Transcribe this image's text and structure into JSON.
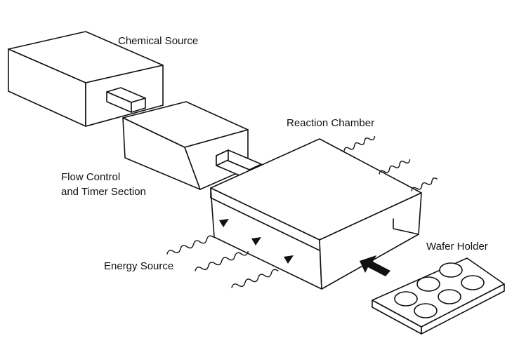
{
  "labels": {
    "chemical_source": "Chemical Source",
    "flow_control_line1": "Flow Control",
    "flow_control_line2": "and Timer Section",
    "reaction_chamber": "Reaction Chamber",
    "energy_source": "Energy Source",
    "wafer_holder": "Wafer Holder"
  },
  "colors": {
    "ink": "#111111",
    "paper": "#ffffff"
  },
  "wafer_holder_slots": 6
}
